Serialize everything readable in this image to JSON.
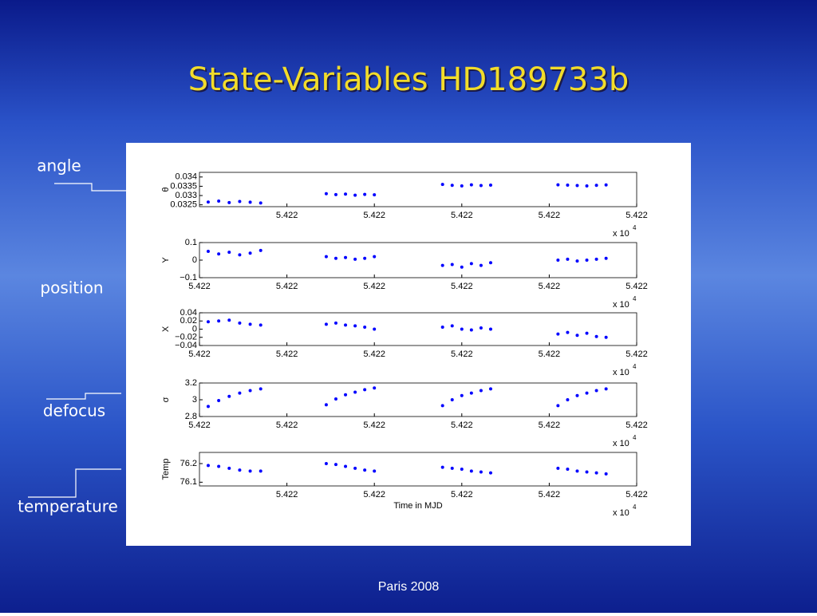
{
  "slide": {
    "title": "State-Variables HD189733b",
    "footer": "Paris 2008",
    "labels": [
      "angle",
      "position",
      "defocus",
      "temperature"
    ]
  },
  "chart_data": [
    {
      "type": "scatter",
      "y_label": "θ",
      "x_multiplier": "x 10",
      "x_multiplier_exp": "4",
      "xlim": [
        54219,
        54224
      ],
      "xticks": [
        {
          "value": 54220,
          "label": "5.422"
        },
        {
          "value": 54221,
          "label": "5.422"
        },
        {
          "value": 54222,
          "label": "5.422"
        },
        {
          "value": 54223,
          "label": "5.422"
        },
        {
          "value": 54224,
          "label": "5.422"
        }
      ],
      "ylim": [
        0.0324,
        0.03425
      ],
      "yticks": [
        0.0325,
        0.033,
        0.0335,
        0.034
      ],
      "series": [
        {
          "color": "#0000ff",
          "x": [
            54219.1,
            54219.22,
            54219.34,
            54219.46,
            54219.58,
            54219.7,
            54220.45,
            54220.56,
            54220.67,
            54220.78,
            54220.89,
            54221.0,
            54221.78,
            54221.89,
            54222.0,
            54222.11,
            54222.22,
            54222.33,
            54223.1,
            54223.21,
            54223.32,
            54223.43,
            54223.54,
            54223.65
          ],
          "values": [
            0.03265,
            0.0327,
            0.03262,
            0.03268,
            0.03264,
            0.0326,
            0.0331,
            0.03305,
            0.03308,
            0.03302,
            0.03306,
            0.03304,
            0.0336,
            0.03355,
            0.03352,
            0.03358,
            0.03354,
            0.03356,
            0.03358,
            0.03356,
            0.03354,
            0.03352,
            0.03355,
            0.03357
          ]
        }
      ]
    },
    {
      "type": "scatter",
      "y_label": "Y",
      "x_multiplier": "x 10",
      "x_multiplier_exp": "4",
      "xlim": [
        54219,
        54224
      ],
      "xticks": [
        {
          "value": 54219,
          "label": "5.422"
        },
        {
          "value": 54220,
          "label": "5.422"
        },
        {
          "value": 54221,
          "label": "5.422"
        },
        {
          "value": 54222,
          "label": "5.422"
        },
        {
          "value": 54223,
          "label": "5.422"
        },
        {
          "value": 54224,
          "label": "5.422"
        }
      ],
      "ylim": [
        -0.1,
        0.1
      ],
      "yticks": [
        0.1,
        0,
        {
          "value": -0.1,
          "label": "−0.1"
        }
      ],
      "series": [
        {
          "color": "#0000ff",
          "x": [
            54219.1,
            54219.22,
            54219.34,
            54219.46,
            54219.58,
            54219.7,
            54220.45,
            54220.56,
            54220.67,
            54220.78,
            54220.89,
            54221.0,
            54221.78,
            54221.89,
            54222.0,
            54222.11,
            54222.22,
            54222.33,
            54223.1,
            54223.21,
            54223.32,
            54223.43,
            54223.54,
            54223.65
          ],
          "values": [
            0.05,
            0.035,
            0.045,
            0.03,
            0.04,
            0.055,
            0.02,
            0.01,
            0.015,
            0.005,
            0.01,
            0.02,
            -0.03,
            -0.025,
            -0.04,
            -0.02,
            -0.03,
            -0.015,
            0.0,
            0.005,
            -0.005,
            0.0,
            0.005,
            0.01
          ]
        }
      ]
    },
    {
      "type": "scatter",
      "y_label": "X",
      "x_multiplier": "x 10",
      "x_multiplier_exp": "4",
      "xlim": [
        54219,
        54224
      ],
      "xticks": [
        {
          "value": 54219,
          "label": "5.422"
        },
        {
          "value": 54220,
          "label": "5.422"
        },
        {
          "value": 54221,
          "label": "5.422"
        },
        {
          "value": 54222,
          "label": "5.422"
        },
        {
          "value": 54223,
          "label": "5.422"
        },
        {
          "value": 54224,
          "label": "5.422"
        }
      ],
      "ylim": [
        -0.04,
        0.04
      ],
      "yticks": [
        0.04,
        0.02,
        0,
        {
          "value": -0.02,
          "label": "−0.02"
        },
        {
          "value": -0.04,
          "label": "−0.04"
        }
      ],
      "series": [
        {
          "color": "#0000ff",
          "x": [
            54219.1,
            54219.22,
            54219.34,
            54219.46,
            54219.58,
            54219.7,
            54220.45,
            54220.56,
            54220.67,
            54220.78,
            54220.89,
            54221.0,
            54221.78,
            54221.89,
            54222.0,
            54222.11,
            54222.22,
            54222.33,
            54223.1,
            54223.21,
            54223.32,
            54223.43,
            54223.54,
            54223.65
          ],
          "values": [
            0.018,
            0.02,
            0.022,
            0.015,
            0.012,
            0.01,
            0.012,
            0.015,
            0.01,
            0.008,
            0.005,
            0.0,
            0.005,
            0.008,
            0.0,
            -0.002,
            0.003,
            0.0,
            -0.012,
            -0.008,
            -0.015,
            -0.01,
            -0.018,
            -0.02
          ]
        }
      ]
    },
    {
      "type": "scatter",
      "y_label": "σ",
      "x_multiplier": "x 10",
      "x_multiplier_exp": "4",
      "xlim": [
        54219,
        54224
      ],
      "xticks": [
        {
          "value": 54219,
          "label": "5.422"
        },
        {
          "value": 54220,
          "label": "5.422"
        },
        {
          "value": 54221,
          "label": "5.422"
        },
        {
          "value": 54222,
          "label": "5.422"
        },
        {
          "value": 54223,
          "label": "5.422"
        },
        {
          "value": 54224,
          "label": "5.422"
        }
      ],
      "ylim": [
        2.8,
        3.2
      ],
      "yticks": [
        3.2,
        3,
        2.8
      ],
      "series": [
        {
          "color": "#0000ff",
          "x": [
            54219.1,
            54219.22,
            54219.34,
            54219.46,
            54219.58,
            54219.7,
            54220.45,
            54220.56,
            54220.67,
            54220.78,
            54220.89,
            54221.0,
            54221.78,
            54221.89,
            54222.0,
            54222.11,
            54222.22,
            54222.33,
            54223.1,
            54223.21,
            54223.32,
            54223.43,
            54223.54,
            54223.65
          ],
          "values": [
            2.92,
            2.99,
            3.04,
            3.08,
            3.11,
            3.13,
            2.94,
            3.01,
            3.06,
            3.09,
            3.12,
            3.14,
            2.93,
            3.0,
            3.05,
            3.08,
            3.11,
            3.13,
            2.93,
            3.0,
            3.05,
            3.08,
            3.11,
            3.13
          ]
        }
      ]
    },
    {
      "type": "scatter",
      "y_label": "Temp",
      "x_label": "Time in MJD",
      "x_multiplier": "x 10",
      "x_multiplier_exp": "4",
      "xlim": [
        54219,
        54224
      ],
      "xticks": [
        {
          "value": 54220,
          "label": "5.422"
        },
        {
          "value": 54221,
          "label": "5.422"
        },
        {
          "value": 54222,
          "label": "5.422"
        },
        {
          "value": 54223,
          "label": "5.422"
        },
        {
          "value": 54224,
          "label": "5.422"
        }
      ],
      "ylim": [
        76.08,
        76.26
      ],
      "yticks": [
        76.2,
        76.1
      ],
      "series": [
        {
          "color": "#0000ff",
          "x": [
            54219.1,
            54219.22,
            54219.34,
            54219.46,
            54219.58,
            54219.7,
            54220.45,
            54220.56,
            54220.67,
            54220.78,
            54220.89,
            54221.0,
            54221.78,
            54221.89,
            54222.0,
            54222.11,
            54222.22,
            54222.33,
            54223.1,
            54223.21,
            54223.32,
            54223.43,
            54223.54,
            54223.65
          ],
          "values": [
            76.19,
            76.185,
            76.175,
            76.165,
            76.16,
            76.16,
            76.2,
            76.195,
            76.185,
            76.175,
            76.165,
            76.16,
            76.18,
            76.175,
            76.17,
            76.16,
            76.155,
            76.15,
            76.175,
            76.17,
            76.16,
            76.155,
            76.15,
            76.145
          ]
        }
      ]
    }
  ]
}
